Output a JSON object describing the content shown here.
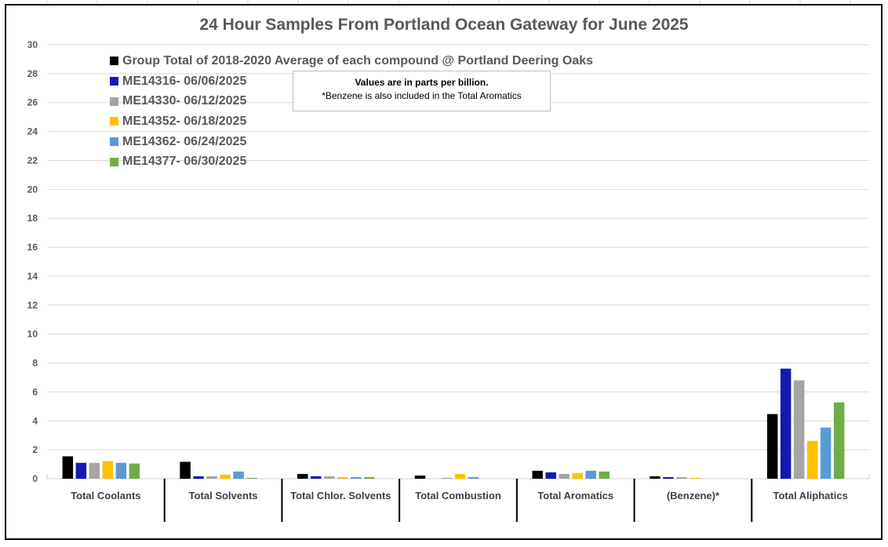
{
  "chart_data": {
    "type": "bar",
    "title": "24 Hour Samples From Portland Ocean Gateway for June 2025",
    "xlabel": "",
    "ylabel": "",
    "ylim": [
      0,
      30
    ],
    "yticks": [
      "0",
      "2",
      "4",
      "6",
      "8",
      "10",
      "12",
      "14",
      "16",
      "18",
      "20",
      "22",
      "24",
      "26",
      "28",
      "30"
    ],
    "grid": true,
    "legend_position": "top-left",
    "categories": [
      "Total Coolants",
      "Total Solvents",
      "Total Chlor. Solvents",
      "Total Combustion",
      "Total Aromatics",
      "(Benzene)*",
      "Total Aliphatics"
    ],
    "series": [
      {
        "name": "Group Total of 2018-2020 Average of each compound @ Portland Deering Oaks",
        "color": "#000000",
        "values": [
          1.55,
          1.17,
          0.33,
          0.22,
          0.55,
          0.17,
          4.47
        ]
      },
      {
        "name": "ME14316- 06/06/2025",
        "color": "#1419b4",
        "values": [
          1.1,
          0.17,
          0.17,
          0,
          0.44,
          0.11,
          7.61
        ]
      },
      {
        "name": "ME14330- 06/12/2025",
        "color": "#a5a5a5",
        "values": [
          1.1,
          0.17,
          0.17,
          0.06,
          0.33,
          0.11,
          6.8
        ]
      },
      {
        "name": "ME14352- 06/18/2025",
        "color": "#ffc000",
        "values": [
          1.22,
          0.28,
          0.11,
          0.33,
          0.39,
          0.06,
          2.62
        ]
      },
      {
        "name": "ME14362- 06/24/2025",
        "color": "#5b9bd5",
        "values": [
          1.1,
          0.5,
          0.11,
          0.11,
          0.55,
          0,
          3.54
        ]
      },
      {
        "name": "ME14377- 06/30/2025",
        "color": "#70ad47",
        "values": [
          1.05,
          0.06,
          0.11,
          0,
          0.5,
          0,
          5.28
        ]
      }
    ],
    "annotation": {
      "line1": "Values are in parts per billion.",
      "line2": "*Benzene is also included in the Total Aromatics"
    }
  }
}
